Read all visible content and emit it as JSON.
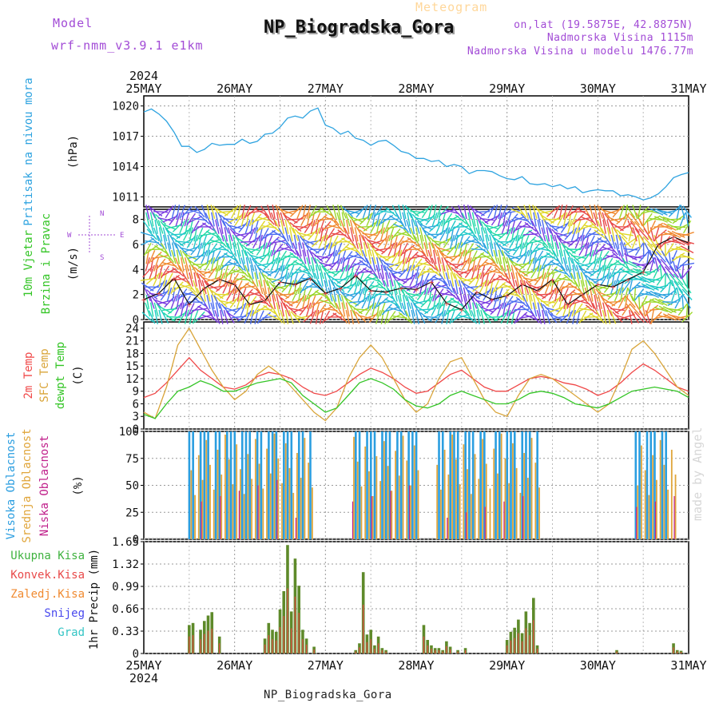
{
  "header": {
    "model_label": "Model",
    "model_version": "wrf-nmm_v3.9.1  e1km",
    "meteogram_label": "Meteogram",
    "station": "NP_Biogradska_Gora",
    "lonlat": "on,lat (19.5875E, 42.8875N)",
    "elevation": "Nadmorska Visina 1115m",
    "model_elevation": "Nadmorska Visina u modelu 1476.77m",
    "footer_station": "NP_Biogradska_Gora",
    "credit": "made by Angel"
  },
  "colors": {
    "pressure": "#2ea3e0",
    "temp2m": "#f04848",
    "sfc": "#d9a53a",
    "dewpt": "#34c526",
    "high_cloud": "#2b9ee0",
    "mid_cloud": "#e0a53a",
    "low_cloud": "#c0208b",
    "total_precip": "#3fb23f",
    "conv_precip": "#e84a4a",
    "frozen": "#f08a30",
    "snow": "#4848ee",
    "hail": "#34c5c5",
    "label_purple": "#a24bd6"
  },
  "time_axis": {
    "year": "2024",
    "ticks": [
      "25MAY",
      "26MAY",
      "27MAY",
      "28MAY",
      "29MAY",
      "30MAY",
      "31MAY"
    ]
  },
  "chart_data": [
    {
      "type": "line",
      "title": "",
      "ylabel_name": "Pritisak na nivou mora",
      "ylabel_unit": "(hPa)",
      "ylim": [
        1010.0,
        1021.0
      ],
      "yticks": [
        "1011",
        "1014",
        "1017",
        "1020"
      ],
      "series": [
        {
          "name": "Pritisak na nivou mora",
          "x": [
            0,
            2,
            4,
            6,
            8,
            10,
            12,
            14,
            16,
            18,
            20,
            22,
            24,
            26,
            28,
            30,
            32,
            34,
            36,
            38,
            40,
            42,
            44,
            46,
            48,
            50,
            52,
            54,
            56,
            58,
            60,
            62,
            64,
            66,
            68,
            70,
            72,
            74,
            76,
            78,
            80,
            82,
            84,
            86,
            88,
            90,
            92,
            94,
            96,
            98,
            100,
            102,
            104,
            106,
            108,
            110,
            112,
            114,
            116,
            118,
            120,
            122,
            124,
            126,
            128,
            130,
            132,
            134,
            136,
            138,
            140,
            142,
            144
          ],
          "values": [
            1019.4,
            1019.7,
            1019.2,
            1018.5,
            1017.4,
            1016.0,
            1016.0,
            1015.4,
            1015.7,
            1016.3,
            1016.1,
            1016.2,
            1016.2,
            1016.7,
            1016.3,
            1016.5,
            1017.2,
            1017.3,
            1017.9,
            1018.8,
            1019.0,
            1018.8,
            1019.5,
            1019.8,
            1018.1,
            1017.8,
            1017.2,
            1017.5,
            1016.8,
            1016.6,
            1016.1,
            1016.5,
            1016.6,
            1016.1,
            1015.5,
            1015.3,
            1014.8,
            1014.8,
            1014.5,
            1014.6,
            1014.0,
            1014.2,
            1014.0,
            1013.3,
            1013.6,
            1013.6,
            1013.5,
            1013.1,
            1012.8,
            1012.7,
            1013.0,
            1012.3,
            1012.2,
            1012.3,
            1012.0,
            1012.2,
            1011.8,
            1012.0,
            1011.4,
            1011.6,
            1011.7,
            1011.6,
            1011.6,
            1011.1,
            1011.2,
            1011.0,
            1010.7,
            1010.9,
            1011.3,
            1012.0,
            1012.9,
            1013.2,
            1013.4
          ]
        }
      ]
    },
    {
      "type": "scatter",
      "title": "",
      "ylabel_name": "10m Vjetar Brzina i Pravac",
      "ylabel_unit": "(m/s)",
      "ylim": [
        0,
        8.8
      ],
      "yticks": [
        "0",
        "2",
        "4",
        "6",
        "8"
      ],
      "compass": [
        "N",
        "S",
        "W",
        "E"
      ],
      "note": "Wind barbs across 0-8 m/s band for each hour; speed trace overlaid",
      "series": [
        {
          "name": "10m Vjetar",
          "x": [
            0,
            4,
            8,
            12,
            16,
            20,
            24,
            28,
            32,
            36,
            40,
            44,
            48,
            52,
            56,
            60,
            64,
            68,
            72,
            76,
            80,
            84,
            88,
            92,
            96,
            100,
            104,
            108,
            112,
            116,
            120,
            124,
            128,
            132,
            136,
            140,
            144
          ],
          "values": [
            1.6,
            2.1,
            3.3,
            1.2,
            2.5,
            3.2,
            2.8,
            1.2,
            1.5,
            3.0,
            2.8,
            3.3,
            2.1,
            2.5,
            3.5,
            2.3,
            2.2,
            2.5,
            2.4,
            3.0,
            1.3,
            0.8,
            2.2,
            1.6,
            1.9,
            2.8,
            2.3,
            3.2,
            1.2,
            2.0,
            2.8,
            2.6,
            3.2,
            3.8,
            6.0,
            6.6,
            6.1
          ]
        }
      ]
    },
    {
      "type": "line",
      "title": "",
      "ylabel_names": [
        "2m Temp",
        "SFC Temp",
        "dewpt Temp"
      ],
      "ylabel_unit": "(C)",
      "ylim": [
        0,
        25.5
      ],
      "yticks": [
        "0",
        "3",
        "6",
        "9",
        "12",
        "15",
        "18",
        "21",
        "24"
      ],
      "series": [
        {
          "name": "2m Temp",
          "x": [
            0,
            3,
            6,
            9,
            12,
            15,
            18,
            21,
            24,
            27,
            30,
            33,
            36,
            39,
            42,
            45,
            48,
            51,
            54,
            57,
            60,
            63,
            66,
            69,
            72,
            75,
            78,
            81,
            84,
            87,
            90,
            93,
            96,
            99,
            102,
            105,
            108,
            111,
            114,
            117,
            120,
            123,
            126,
            129,
            132,
            135,
            138,
            141,
            144
          ],
          "values": [
            7.5,
            8.5,
            11,
            14,
            17,
            14,
            12,
            10,
            9.5,
            10.5,
            12.5,
            13.5,
            13,
            12,
            10,
            8.5,
            8,
            9,
            11,
            13,
            14.5,
            13.5,
            12,
            10,
            8.5,
            9,
            11,
            13,
            14,
            12,
            10,
            9,
            9,
            10.5,
            12,
            12.5,
            12,
            11,
            10.5,
            9.5,
            8,
            9,
            11,
            13.5,
            15.5,
            14,
            12,
            10,
            9
          ]
        },
        {
          "name": "SFC Temp",
          "x": [
            0,
            3,
            6,
            9,
            12,
            15,
            18,
            21,
            24,
            27,
            30,
            33,
            36,
            39,
            42,
            45,
            48,
            51,
            54,
            57,
            60,
            63,
            66,
            69,
            72,
            75,
            78,
            81,
            84,
            87,
            90,
            93,
            96,
            99,
            102,
            105,
            108,
            111,
            114,
            117,
            120,
            123,
            126,
            129,
            132,
            135,
            138,
            141,
            144
          ],
          "values": [
            4,
            2.5,
            10,
            20,
            24,
            19,
            14,
            10,
            7,
            9,
            13,
            15,
            13,
            10,
            7,
            4,
            2,
            5,
            12,
            17,
            20,
            17,
            12,
            7,
            4,
            6,
            12,
            16,
            17,
            12,
            7,
            4,
            3,
            8,
            12,
            13,
            12,
            10,
            8,
            6,
            4,
            6,
            12,
            19,
            21,
            18,
            14,
            10,
            8
          ]
        },
        {
          "name": "dewpt Temp",
          "x": [
            0,
            3,
            6,
            9,
            12,
            15,
            18,
            21,
            24,
            27,
            30,
            33,
            36,
            39,
            42,
            45,
            48,
            51,
            54,
            57,
            60,
            63,
            66,
            69,
            72,
            75,
            78,
            81,
            84,
            87,
            90,
            93,
            96,
            99,
            102,
            105,
            108,
            111,
            114,
            117,
            120,
            123,
            126,
            129,
            132,
            135,
            138,
            141,
            144
          ],
          "values": [
            3.5,
            2.5,
            6,
            9,
            10,
            11.5,
            10.5,
            9,
            9,
            10,
            11,
            11.5,
            12,
            11,
            8,
            6,
            4,
            5,
            8,
            11,
            12,
            11,
            9.5,
            7,
            5.5,
            5,
            6,
            8,
            9,
            8,
            7,
            6,
            6,
            7,
            8.5,
            9,
            8.5,
            7.5,
            6,
            5.5,
            5,
            6,
            7.5,
            9,
            9.5,
            10,
            9.5,
            9,
            7.5
          ]
        }
      ]
    },
    {
      "type": "bar",
      "title": "",
      "ylabel_names": [
        "Visoka Oblacnost",
        "Srednja Oblacnost",
        "Niska Oblacnost"
      ],
      "ylabel_unit": "(%)",
      "ylim": [
        0,
        100
      ],
      "yticks": [
        "0",
        "25",
        "50",
        "75",
        "100"
      ],
      "series": [
        {
          "name": "Visoka Oblacnost",
          "note": "high cloud ~100% in bands 12-44h, 55-72h, 77-104h, 130-140h; else 0"
        },
        {
          "name": "Srednja Oblacnost",
          "note": "mid cloud intermittent 40-100% in same bands"
        },
        {
          "name": "Niska Oblacnost",
          "note": "low cloud sporadic 20-60%"
        }
      ]
    },
    {
      "type": "bar",
      "title": "",
      "ylabel_names": [
        "Ukupna Kisa",
        "Konvek.Kisa",
        "Zaledj.Kisa",
        "Snijeg",
        "Grad"
      ],
      "ylabel_unit": "1hr Precip (mm)",
      "ylim": [
        0,
        1.65
      ],
      "yticks": [
        "0",
        "0.33",
        "0.66",
        "0.99",
        "1.32",
        "1.65"
      ],
      "series": [
        {
          "name": "Ukupna Kisa",
          "x": [
            12,
            13,
            15,
            16,
            17,
            18,
            20,
            32,
            33,
            34,
            35,
            36,
            37,
            38,
            39,
            40,
            41,
            42,
            43,
            45,
            56,
            57,
            58,
            59,
            60,
            61,
            62,
            63,
            64,
            74,
            75,
            76,
            77,
            78,
            79,
            80,
            81,
            83,
            85,
            96,
            97,
            98,
            99,
            100,
            101,
            102,
            103,
            104,
            125,
            140,
            141,
            142
          ],
          "values": [
            0.42,
            0.45,
            0.35,
            0.48,
            0.56,
            0.61,
            0.25,
            0.22,
            0.45,
            0.35,
            0.32,
            0.65,
            0.92,
            1.6,
            0.62,
            1.4,
            1.0,
            0.35,
            0.22,
            0.1,
            0.05,
            0.15,
            1.2,
            0.28,
            0.35,
            0.12,
            0.25,
            0.08,
            0.05,
            0.42,
            0.2,
            0.12,
            0.08,
            0.08,
            0.05,
            0.18,
            0.1,
            0.05,
            0.08,
            0.2,
            0.32,
            0.38,
            0.5,
            0.3,
            0.62,
            0.45,
            0.82,
            0.12,
            0.05,
            0.15,
            0.05,
            0.04
          ]
        }
      ]
    }
  ]
}
